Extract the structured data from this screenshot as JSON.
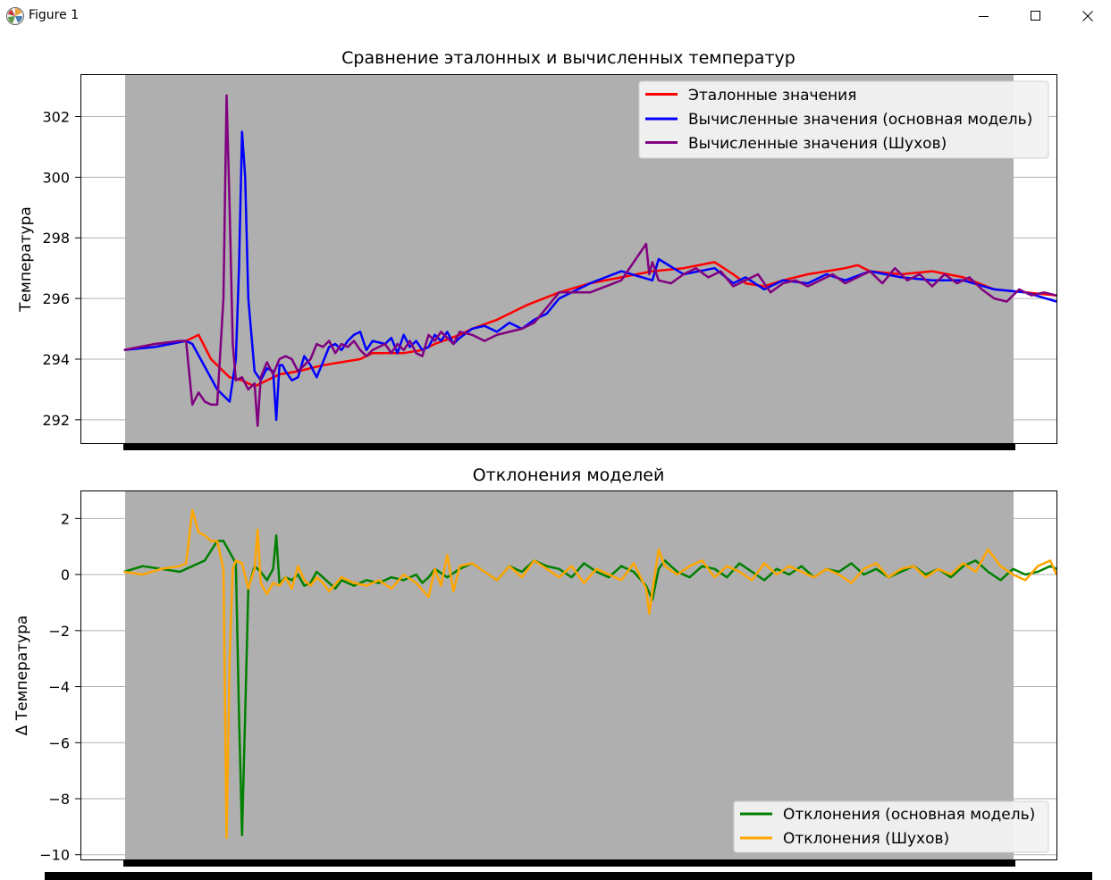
{
  "window": {
    "title": "Figure 1",
    "icons": {
      "app": "matplotlib-logo-icon",
      "minimize": "minimize-icon",
      "maximize": "maximize-icon",
      "close": "close-icon"
    }
  },
  "colors": {
    "axes_bg": "#afafaf",
    "grid": "#b0b0b0",
    "ref": "#ff0000",
    "main": "#0000ff",
    "shukhov": "#800080",
    "dev_main": "#008000",
    "dev_shukhov": "#ffa500"
  },
  "chart_data": [
    {
      "type": "line",
      "title": "Сравнение эталонных и вычисленных температур",
      "xlabel": "",
      "ylabel": "Температура",
      "yticks": [
        292,
        294,
        296,
        298,
        300,
        302
      ],
      "ytick_labels": [
        "292",
        "294",
        "296",
        "298",
        "300",
        "302"
      ],
      "ylim": [
        291.2,
        303.4
      ],
      "xlim": [
        -14,
        300
      ],
      "grid": true,
      "legend": "top-right",
      "series": [
        {
          "name": "Эталонные значения",
          "color": "#ff0000",
          "x": [
            0,
            10,
            20,
            22,
            24,
            28,
            32,
            34,
            38,
            42,
            46,
            50,
            56,
            60,
            64,
            70,
            76,
            80,
            84,
            90,
            96,
            100,
            108,
            112,
            120,
            130,
            140,
            150,
            160,
            170,
            180,
            190,
            196,
            200,
            206,
            212,
            220,
            226,
            232,
            236,
            240,
            250,
            260,
            270,
            280,
            290,
            300
          ],
          "y": [
            294.3,
            294.5,
            294.6,
            294.7,
            294.8,
            294.0,
            293.6,
            293.4,
            293.3,
            293.1,
            293.3,
            293.5,
            293.6,
            293.7,
            293.8,
            293.9,
            294.0,
            294.2,
            294.2,
            294.2,
            294.3,
            294.5,
            294.8,
            295.0,
            295.3,
            295.8,
            296.2,
            296.5,
            296.7,
            296.9,
            297.0,
            297.2,
            296.8,
            296.5,
            296.4,
            296.6,
            296.8,
            296.9,
            297.0,
            297.1,
            296.9,
            296.8,
            296.9,
            296.7,
            296.3,
            296.2,
            296.1
          ]
        },
        {
          "name": "Вычисленные значения (основная модель)",
          "color": "#0000ff",
          "x": [
            0,
            10,
            20,
            22,
            30,
            34,
            36,
            37,
            38,
            39,
            40,
            42,
            44,
            46,
            48,
            49,
            50,
            51,
            52,
            54,
            56,
            58,
            60,
            62,
            64,
            66,
            68,
            70,
            72,
            74,
            76,
            78,
            80,
            84,
            86,
            88,
            90,
            92,
            94,
            96,
            98,
            100,
            102,
            104,
            106,
            108,
            112,
            116,
            120,
            124,
            128,
            132,
            136,
            140,
            150,
            160,
            170,
            172,
            180,
            190,
            196,
            200,
            206,
            212,
            220,
            226,
            232,
            240,
            250,
            260,
            270,
            280,
            290,
            300
          ],
          "y": [
            294.3,
            294.4,
            294.6,
            294.5,
            293.0,
            292.6,
            294.0,
            297.0,
            301.5,
            300.0,
            296.0,
            293.6,
            293.3,
            293.7,
            293.6,
            292.0,
            293.8,
            293.8,
            293.6,
            293.3,
            293.4,
            294.1,
            293.8,
            293.4,
            293.9,
            294.4,
            294.5,
            294.3,
            294.6,
            294.8,
            294.9,
            294.3,
            294.6,
            294.5,
            294.7,
            294.2,
            294.8,
            294.4,
            294.6,
            294.3,
            294.4,
            294.8,
            294.6,
            294.9,
            294.5,
            294.7,
            295.0,
            295.1,
            294.9,
            295.2,
            295.0,
            295.3,
            295.5,
            296.0,
            296.5,
            296.9,
            296.6,
            297.3,
            296.8,
            297.0,
            296.5,
            296.7,
            296.3,
            296.6,
            296.5,
            296.8,
            296.6,
            296.9,
            296.7,
            296.6,
            296.6,
            296.3,
            296.2,
            295.9
          ]
        },
        {
          "name": "Вычисленные значения (Шухов)",
          "color": "#800080",
          "x": [
            0,
            10,
            18,
            20,
            22,
            24,
            26,
            28,
            30,
            32,
            33,
            34,
            35,
            36,
            38,
            40,
            42,
            43,
            44,
            46,
            48,
            50,
            52,
            54,
            56,
            58,
            60,
            62,
            64,
            66,
            68,
            70,
            72,
            74,
            76,
            78,
            80,
            84,
            86,
            88,
            90,
            92,
            94,
            96,
            98,
            100,
            102,
            104,
            106,
            108,
            112,
            116,
            120,
            124,
            128,
            132,
            136,
            140,
            150,
            160,
            168,
            169,
            170,
            172,
            176,
            180,
            184,
            188,
            192,
            196,
            200,
            204,
            208,
            212,
            216,
            220,
            224,
            228,
            232,
            236,
            240,
            244,
            248,
            252,
            256,
            260,
            264,
            268,
            272,
            276,
            280,
            284,
            288,
            292,
            296,
            300
          ],
          "y": [
            294.3,
            294.5,
            294.6,
            294.6,
            292.5,
            292.9,
            292.6,
            292.5,
            292.5,
            296.0,
            302.7,
            299.0,
            294.5,
            293.3,
            293.4,
            293.0,
            293.2,
            291.8,
            293.4,
            293.9,
            293.5,
            294.0,
            294.1,
            294.0,
            293.6,
            293.8,
            294.0,
            294.5,
            294.4,
            294.6,
            294.2,
            294.5,
            294.4,
            294.6,
            294.3,
            294.1,
            294.3,
            294.5,
            294.2,
            294.5,
            294.3,
            294.6,
            294.2,
            294.1,
            294.8,
            294.6,
            294.9,
            294.7,
            294.5,
            294.9,
            294.8,
            294.6,
            294.8,
            294.9,
            295.0,
            295.2,
            295.7,
            296.2,
            296.2,
            296.6,
            297.8,
            296.8,
            297.2,
            296.6,
            296.5,
            296.8,
            297.0,
            296.7,
            296.9,
            296.4,
            296.6,
            296.8,
            296.2,
            296.5,
            296.6,
            296.4,
            296.6,
            296.8,
            296.5,
            296.7,
            296.9,
            296.5,
            297.0,
            296.6,
            296.8,
            296.4,
            296.8,
            296.5,
            296.7,
            296.3,
            296.0,
            295.9,
            296.3,
            296.1,
            296.2,
            296.1
          ]
        }
      ]
    },
    {
      "type": "line",
      "title": "Отклонения моделей",
      "xlabel": "",
      "ylabel": "Δ Температура",
      "yticks": [
        -10,
        -8,
        -6,
        -4,
        -2,
        0,
        2
      ],
      "ytick_labels": [
        "−10",
        "−8",
        "−6",
        "−4",
        "−2",
        "0",
        "2"
      ],
      "ylim": [
        -10.2,
        3.0
      ],
      "xlim": [
        -14,
        300
      ],
      "grid": true,
      "legend": "bottom-right",
      "series": [
        {
          "name": "Отклонения (основная модель)",
          "color": "#008000",
          "x": [
            0,
            6,
            12,
            18,
            22,
            26,
            30,
            32,
            34,
            36,
            37,
            38,
            39,
            40,
            42,
            44,
            46,
            48,
            49,
            50,
            52,
            54,
            56,
            58,
            60,
            62,
            64,
            66,
            68,
            70,
            74,
            78,
            82,
            86,
            90,
            94,
            96,
            98,
            100,
            104,
            108,
            112,
            116,
            120,
            124,
            128,
            132,
            136,
            140,
            144,
            148,
            152,
            156,
            160,
            164,
            168,
            170,
            172,
            174,
            178,
            182,
            186,
            190,
            194,
            198,
            202,
            206,
            210,
            214,
            218,
            222,
            226,
            230,
            234,
            238,
            242,
            246,
            250,
            254,
            258,
            262,
            266,
            270,
            274,
            278,
            282,
            286,
            290,
            294,
            298,
            300
          ],
          "y": [
            0.1,
            0.3,
            0.2,
            0.1,
            0.3,
            0.5,
            1.2,
            1.2,
            0.8,
            0.4,
            -5.0,
            -9.3,
            -5.0,
            -0.5,
            0.3,
            0.1,
            -0.2,
            0.2,
            1.4,
            -0.3,
            -0.1,
            -0.2,
            0.0,
            -0.4,
            -0.3,
            0.1,
            -0.1,
            -0.3,
            -0.5,
            -0.2,
            -0.4,
            -0.2,
            -0.3,
            -0.1,
            -0.2,
            0.0,
            -0.3,
            -0.1,
            0.2,
            -0.1,
            0.2,
            0.4,
            0.1,
            -0.2,
            0.3,
            0.1,
            0.5,
            0.3,
            0.2,
            -0.1,
            0.4,
            0.1,
            -0.1,
            0.3,
            0.1,
            -0.4,
            -0.9,
            0.2,
            0.5,
            0.1,
            -0.1,
            0.3,
            0.2,
            -0.1,
            0.4,
            0.1,
            -0.2,
            0.2,
            0.0,
            0.3,
            -0.1,
            0.2,
            0.1,
            0.4,
            0.0,
            0.2,
            -0.1,
            0.1,
            0.3,
            0.0,
            0.2,
            -0.1,
            0.3,
            0.5,
            0.1,
            -0.2,
            0.2,
            0.0,
            0.1,
            0.3,
            0.2
          ]
        },
        {
          "name": "Отклонения (Шухов)",
          "color": "#ffa500",
          "x": [
            0,
            6,
            12,
            18,
            20,
            22,
            24,
            26,
            28,
            30,
            32,
            33,
            34,
            35,
            36,
            38,
            40,
            42,
            43,
            44,
            46,
            48,
            50,
            52,
            54,
            56,
            58,
            60,
            62,
            64,
            66,
            70,
            74,
            78,
            82,
            86,
            90,
            94,
            98,
            100,
            102,
            104,
            106,
            108,
            112,
            116,
            120,
            124,
            128,
            132,
            136,
            140,
            144,
            148,
            152,
            156,
            160,
            164,
            168,
            169,
            170,
            172,
            174,
            178,
            182,
            186,
            190,
            194,
            198,
            202,
            206,
            210,
            214,
            218,
            222,
            226,
            230,
            234,
            238,
            242,
            246,
            250,
            254,
            258,
            262,
            266,
            270,
            274,
            278,
            282,
            286,
            290,
            294,
            298,
            300
          ],
          "y": [
            0.1,
            0.0,
            0.2,
            0.3,
            0.4,
            2.3,
            1.5,
            1.4,
            1.2,
            1.2,
            0.2,
            -9.4,
            -3.0,
            0.2,
            0.5,
            0.4,
            -0.5,
            0.2,
            1.6,
            -0.3,
            -0.7,
            -0.3,
            -0.4,
            -0.1,
            -0.5,
            0.3,
            -0.2,
            -0.4,
            -0.1,
            -0.3,
            -0.6,
            -0.1,
            -0.3,
            -0.4,
            -0.2,
            -0.5,
            0.0,
            -0.3,
            -0.8,
            0.2,
            -0.4,
            0.7,
            -0.6,
            0.3,
            0.4,
            0.1,
            -0.2,
            0.3,
            -0.1,
            0.5,
            0.2,
            -0.1,
            0.3,
            -0.3,
            0.2,
            0.0,
            -0.2,
            0.4,
            -0.5,
            -1.4,
            -0.6,
            0.9,
            0.3,
            0.0,
            0.3,
            0.5,
            -0.1,
            0.3,
            0.1,
            -0.2,
            0.4,
            0.0,
            0.3,
            0.1,
            -0.1,
            0.2,
            0.0,
            -0.3,
            0.2,
            0.4,
            -0.1,
            0.2,
            0.3,
            -0.1,
            0.2,
            0.0,
            0.4,
            0.1,
            0.9,
            0.3,
            0.0,
            -0.2,
            0.3,
            0.5,
            0.0
          ]
        }
      ]
    }
  ]
}
